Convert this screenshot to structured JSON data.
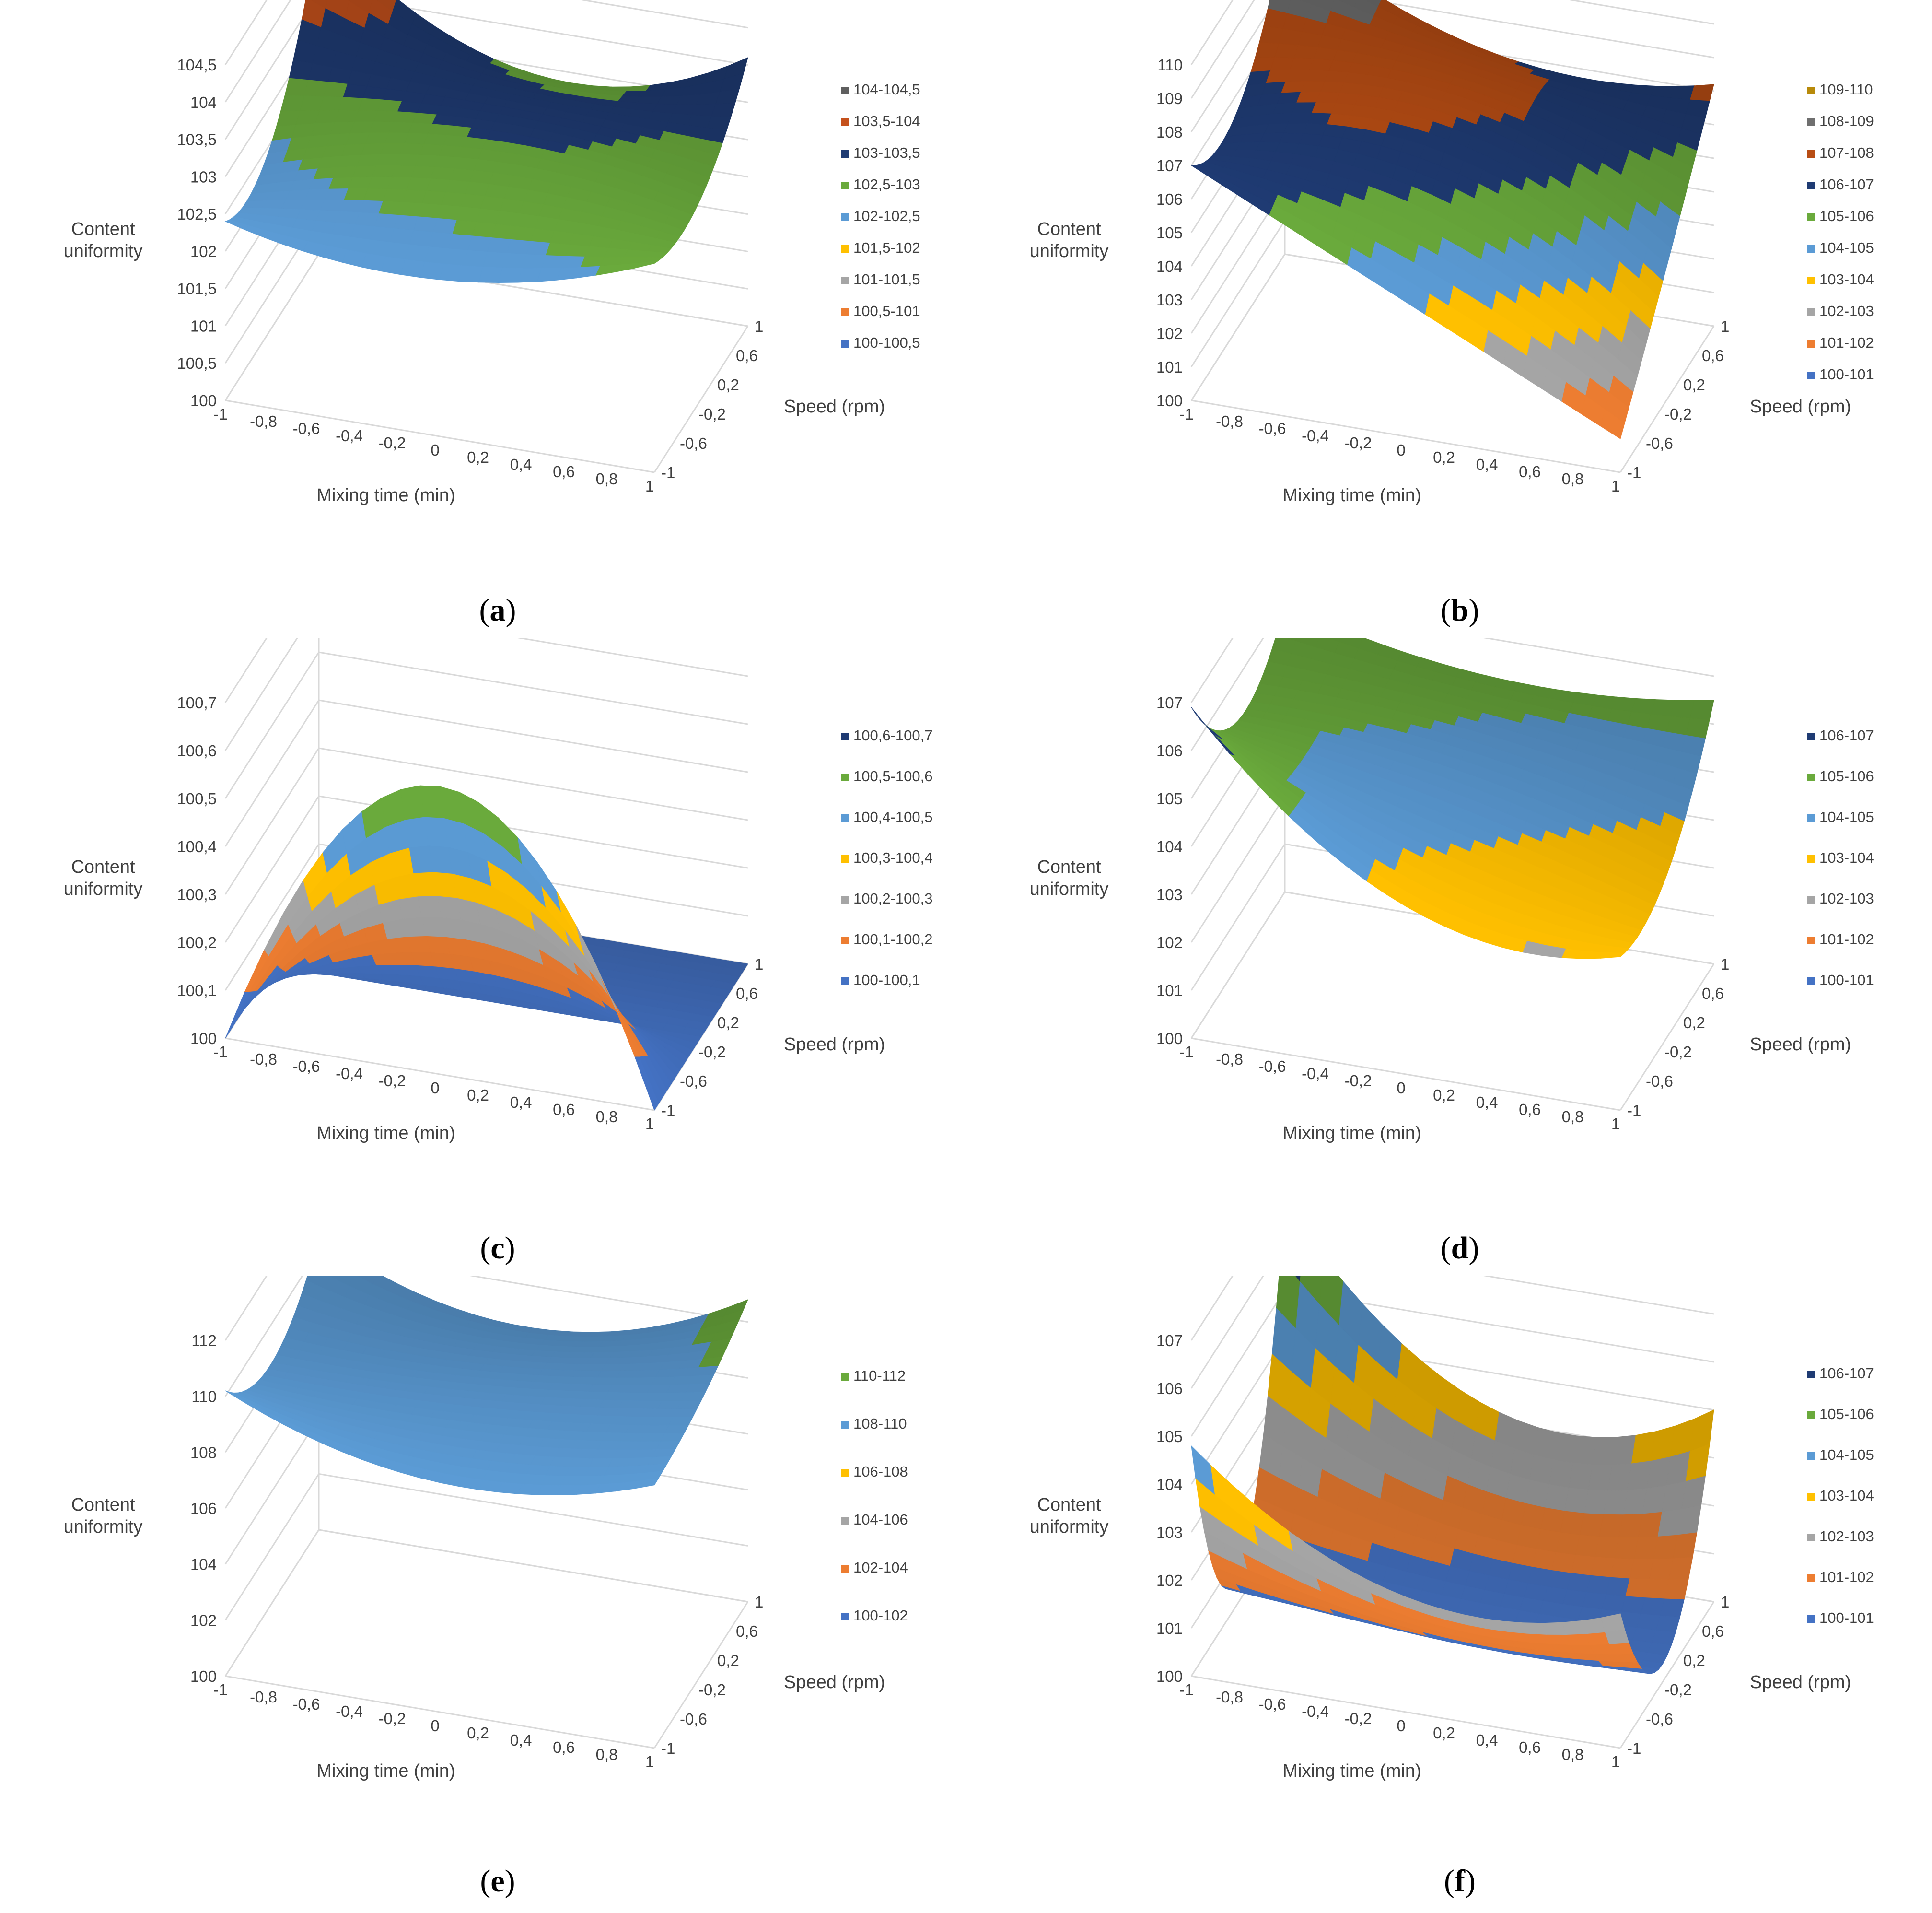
{
  "chart_data": [
    {
      "type": "surface",
      "panel_label": "a",
      "zlabel": "Content uniformity",
      "xlabel": "Mixing time (min)",
      "ylabel": "Speed (rpm)",
      "zlim": [
        100,
        104.5
      ],
      "z_ticks": [
        "100",
        "100,5",
        "101",
        "101,5",
        "102",
        "102,5",
        "103",
        "103,5",
        "104",
        "104,5"
      ],
      "x_ticks": [
        "-1",
        "-0,8",
        "-0,6",
        "-0,4",
        "-0,2",
        "0",
        "0,2",
        "0,4",
        "0,6",
        "0,8",
        "1"
      ],
      "y_ticks": [
        "-1",
        "-0,6",
        "-0,2",
        "0,2",
        "0,6",
        "1"
      ],
      "legend": [
        {
          "label": "104-104,5",
          "color": "#5f5f5f"
        },
        {
          "label": "103,5-104",
          "color": "#c5511c"
        },
        {
          "label": "103-103,5",
          "color": "#1f3b73"
        },
        {
          "label": "102,5-103",
          "color": "#6aaa3c"
        },
        {
          "label": "102-102,5",
          "color": "#5b9bd5"
        },
        {
          "label": "101,5-102",
          "color": "#ffc000"
        },
        {
          "label": "101-101,5",
          "color": "#a5a5a5"
        },
        {
          "label": "100,5-101",
          "color": "#ed7d31"
        },
        {
          "label": "100-100,5",
          "color": "#4472c4"
        }
      ],
      "surface": {
        "x": [
          -1,
          0,
          1
        ],
        "y": [
          -1,
          0,
          1
        ],
        "z": [
          [
            102.4,
            102.5,
            104.4
          ],
          [
            102.1,
            103.0,
            102.9
          ],
          [
            102.8,
            102.7,
            103.6
          ]
        ]
      }
    },
    {
      "type": "surface",
      "panel_label": "b",
      "zlabel": "Content uniformity",
      "xlabel": "Mixing time (min)",
      "ylabel": "Speed (rpm)",
      "zlim": [
        100,
        110
      ],
      "z_ticks": [
        "100",
        "101",
        "102",
        "103",
        "104",
        "105",
        "106",
        "107",
        "108",
        "109",
        "110"
      ],
      "x_ticks": [
        "-1",
        "-0,8",
        "-0,6",
        "-0,4",
        "-0,2",
        "0",
        "0,2",
        "0,4",
        "0,6",
        "0,8",
        "1"
      ],
      "y_ticks": [
        "-1",
        "-0,6",
        "-0,2",
        "0,2",
        "0,6",
        "1"
      ],
      "legend": [
        {
          "label": "109-110",
          "color": "#b88a0a"
        },
        {
          "label": "108-109",
          "color": "#6f6f6f"
        },
        {
          "label": "107-108",
          "color": "#b84d14"
        },
        {
          "label": "106-107",
          "color": "#1f3b73"
        },
        {
          "label": "105-106",
          "color": "#6aaa3c"
        },
        {
          "label": "104-105",
          "color": "#5b9bd5"
        },
        {
          "label": "103-104",
          "color": "#ffc000"
        },
        {
          "label": "102-103",
          "color": "#a5a5a5"
        },
        {
          "label": "101-102",
          "color": "#ed7d31"
        },
        {
          "label": "100-101",
          "color": "#4472c4"
        }
      ],
      "surface": {
        "x": [
          -1,
          0,
          1
        ],
        "y": [
          -1,
          0,
          1
        ],
        "z": [
          [
            107,
            106.5,
            109.7
          ],
          [
            104.0,
            107.0,
            107.0
          ],
          [
            101.0,
            104.0,
            107.2
          ]
        ]
      }
    },
    {
      "type": "surface",
      "panel_label": "c",
      "zlabel": "Content uniformity",
      "xlabel": "Mixing time (min)",
      "ylabel": "Speed (rpm)",
      "zlim": [
        100,
        100.7
      ],
      "z_ticks": [
        "100",
        "100,1",
        "100,2",
        "100,3",
        "100,4",
        "100,5",
        "100,6",
        "100,7"
      ],
      "x_ticks": [
        "-1",
        "-0,8",
        "-0,6",
        "-0,4",
        "-0,2",
        "0",
        "0,2",
        "0,4",
        "0,6",
        "0,8",
        "1"
      ],
      "y_ticks": [
        "-1",
        "-0,6",
        "-0,2",
        "0,2",
        "0,6",
        "1"
      ],
      "legend": [
        {
          "label": "100,6-100,7",
          "color": "#1f3b73"
        },
        {
          "label": "100,5-100,6",
          "color": "#6aaa3c"
        },
        {
          "label": "100,4-100,5",
          "color": "#5b9bd5"
        },
        {
          "label": "100,3-100,4",
          "color": "#ffc000"
        },
        {
          "label": "100,2-100,3",
          "color": "#a5a5a5"
        },
        {
          "label": "100,1-100,2",
          "color": "#ed7d31"
        },
        {
          "label": "100-100,1",
          "color": "#4472c4"
        }
      ],
      "surface": {
        "x": [
          -1,
          0,
          1
        ],
        "y": [
          -1,
          0,
          1
        ],
        "z": [
          [
            100.0,
            100.0,
            100.0
          ],
          [
            100.6,
            100.0,
            100.0
          ],
          [
            100.0,
            100.0,
            100.0
          ]
        ]
      }
    },
    {
      "type": "surface",
      "panel_label": "d",
      "zlabel": "Content uniformity",
      "xlabel": "Mixing time (min)",
      "ylabel": "Speed (rpm)",
      "zlim": [
        100,
        107
      ],
      "z_ticks": [
        "100",
        "101",
        "102",
        "103",
        "104",
        "105",
        "106",
        "107"
      ],
      "x_ticks": [
        "-1",
        "-0,8",
        "-0,6",
        "-0,4",
        "-0,2",
        "0",
        "0,2",
        "0,4",
        "0,6",
        "0,8",
        "1"
      ],
      "y_ticks": [
        "-1",
        "-0,6",
        "-0,2",
        "0,2",
        "0,6",
        "1"
      ],
      "legend": [
        {
          "label": "106-107",
          "color": "#1f3b73"
        },
        {
          "label": "105-106",
          "color": "#6aaa3c"
        },
        {
          "label": "104-105",
          "color": "#5b9bd5"
        },
        {
          "label": "103-104",
          "color": "#ffc000"
        },
        {
          "label": "102-103",
          "color": "#a5a5a5"
        },
        {
          "label": "101-102",
          "color": "#ed7d31"
        },
        {
          "label": "100-101",
          "color": "#4472c4"
        }
      ],
      "surface": {
        "x": [
          -1,
          0,
          1
        ],
        "y": [
          -1,
          0,
          1
        ],
        "z": [
          [
            106.9,
            105.1,
            106.0
          ],
          [
            103.5,
            104.6,
            105.2
          ],
          [
            103.2,
            103.4,
            105.5
          ]
        ]
      }
    },
    {
      "type": "surface",
      "panel_label": "e",
      "zlabel": "Content uniformity",
      "xlabel": "Mixing time (min)",
      "ylabel": "Speed (rpm)",
      "zlim": [
        100,
        112
      ],
      "z_ticks": [
        "100",
        "102",
        "104",
        "106",
        "108",
        "110",
        "112"
      ],
      "x_ticks": [
        "-1",
        "-0,8",
        "-0,6",
        "-0,4",
        "-0,2",
        "0",
        "0,2",
        "0,4",
        "0,6",
        "0,8",
        "1"
      ],
      "y_ticks": [
        "-1",
        "-0,6",
        "-0,2",
        "0,2",
        "0,6",
        "1"
      ],
      "legend": [
        {
          "label": "110-112",
          "color": "#6aaa3c"
        },
        {
          "label": "108-110",
          "color": "#5b9bd5"
        },
        {
          "label": "106-108",
          "color": "#ffc000"
        },
        {
          "label": "104-106",
          "color": "#a5a5a5"
        },
        {
          "label": "102-104",
          "color": "#ed7d31"
        },
        {
          "label": "100-102",
          "color": "#4472c4"
        }
      ],
      "surface": {
        "x": [
          -1,
          0,
          1
        ],
        "y": [
          -1,
          0,
          1
        ],
        "z": [
          [
            110.2,
            108.6,
            110.5
          ],
          [
            108.2,
            108.8,
            108.5
          ],
          [
            109.4,
            109.8,
            110.8
          ]
        ]
      }
    },
    {
      "type": "surface",
      "panel_label": "f",
      "zlabel": "Content uniformity",
      "xlabel": "Mixing time (min)",
      "ylabel": "Speed (rpm)",
      "zlim": [
        100,
        107
      ],
      "z_ticks": [
        "100",
        "101",
        "102",
        "103",
        "104",
        "105",
        "106",
        "107"
      ],
      "x_ticks": [
        "-1",
        "-0,8",
        "-0,6",
        "-0,4",
        "-0,2",
        "0",
        "0,2",
        "0,4",
        "0,6",
        "0,8",
        "1"
      ],
      "y_ticks": [
        "-1",
        "-0,6",
        "-0,2",
        "0,2",
        "0,6",
        "1"
      ],
      "legend": [
        {
          "label": "106-107",
          "color": "#1f3b73"
        },
        {
          "label": "105-106",
          "color": "#6aaa3c"
        },
        {
          "label": "104-105",
          "color": "#5b9bd5"
        },
        {
          "label": "103-104",
          "color": "#ffc000"
        },
        {
          "label": "102-103",
          "color": "#a5a5a5"
        },
        {
          "label": "101-102",
          "color": "#ed7d31"
        },
        {
          "label": "100-101",
          "color": "#4472c4"
        }
      ],
      "surface": {
        "x": [
          -1,
          0,
          1
        ],
        "y": [
          -1,
          0,
          1
        ],
        "z": [
          [
            104.8,
            100.6,
            106.8
          ],
          [
            102.4,
            100.4,
            103.2
          ],
          [
            102.8,
            100.4,
            104.0
          ]
        ]
      }
    }
  ]
}
